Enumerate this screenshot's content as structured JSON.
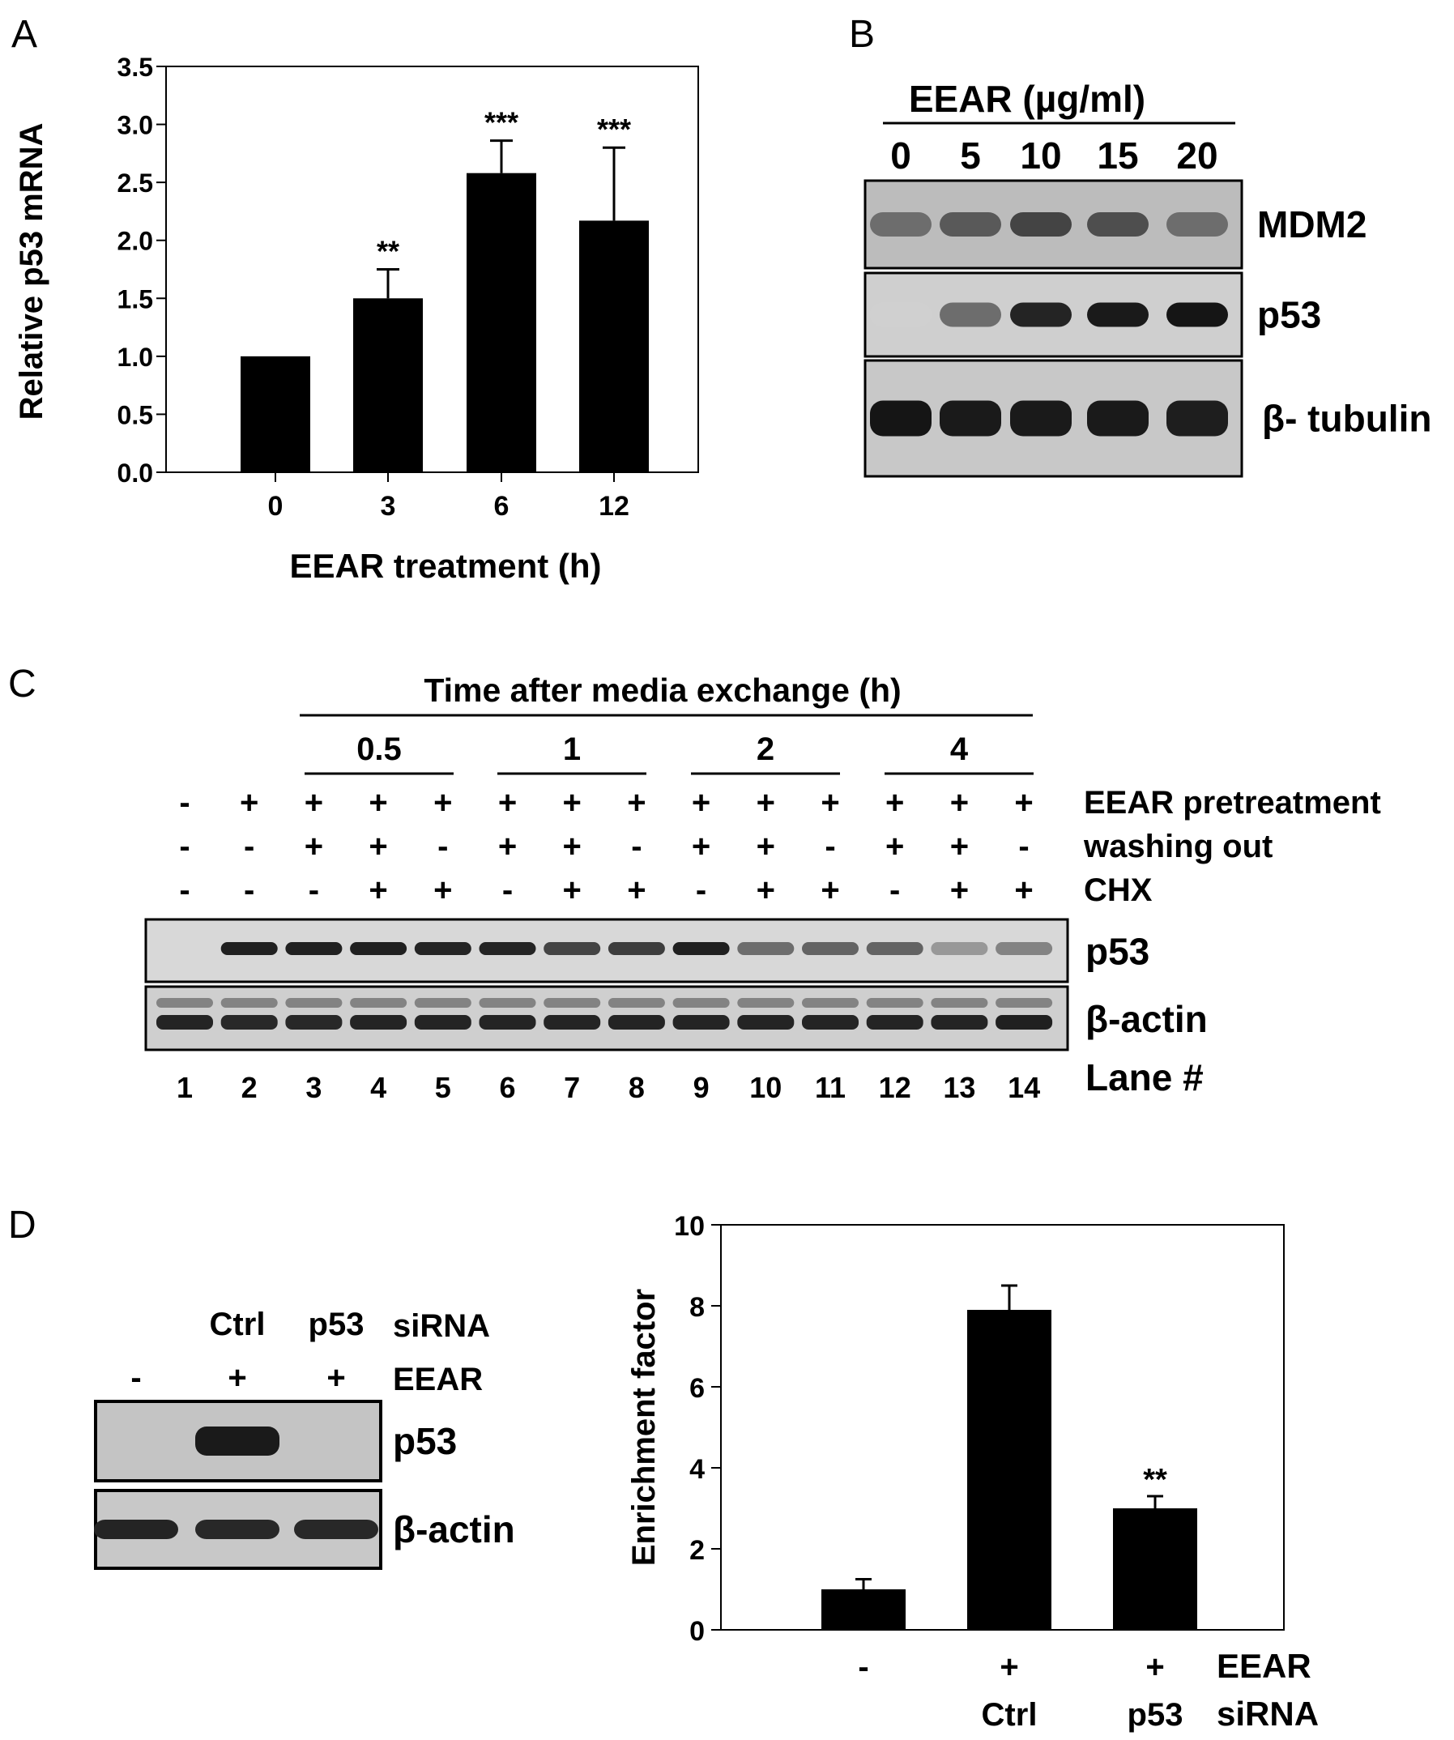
{
  "panels": {
    "A": {
      "letter": "A"
    },
    "B": {
      "letter": "B",
      "header": "EEAR (µg/ml)",
      "doses": [
        "0",
        "5",
        "10",
        "15",
        "20"
      ],
      "blots": [
        {
          "label": "MDM2",
          "intensities": [
            0.55,
            0.65,
            0.75,
            0.7,
            0.55
          ],
          "shade": "#bcbcbc"
        },
        {
          "label": "p53",
          "intensities": [
            0.08,
            0.55,
            0.9,
            0.95,
            0.97
          ],
          "shade": "#cfcfcf"
        },
        {
          "label": "β- tubulin",
          "intensities": [
            0.97,
            0.95,
            0.95,
            0.95,
            0.93
          ],
          "shade": "#c8c8c8"
        }
      ]
    },
    "C": {
      "letter": "C",
      "header": "Time after media exchange (h)",
      "groups": [
        "0.5",
        "1",
        "2",
        "4"
      ],
      "rows": [
        {
          "label": "EEAR pretreatment",
          "signs": [
            "-",
            "+",
            "+",
            "+",
            "+",
            "+",
            "+",
            "+",
            "+",
            "+",
            "+",
            "+",
            "+",
            "+"
          ]
        },
        {
          "label": "washing out",
          "signs": [
            "-",
            "-",
            "+",
            "+",
            "-",
            "+",
            "+",
            "-",
            "+",
            "+",
            "-",
            "+",
            "+",
            "-"
          ]
        },
        {
          "label": "CHX",
          "signs": [
            "-",
            "-",
            "-",
            "+",
            "+",
            "-",
            "+",
            "+",
            "-",
            "+",
            "+",
            "-",
            "+",
            "+"
          ]
        }
      ],
      "blots": [
        {
          "label": "p53",
          "intensities": [
            0.0,
            0.92,
            0.92,
            0.92,
            0.9,
            0.9,
            0.75,
            0.78,
            0.92,
            0.55,
            0.6,
            0.6,
            0.35,
            0.45
          ]
        },
        {
          "label": "β-actin",
          "intensities": [
            0.9,
            0.88,
            0.88,
            0.9,
            0.9,
            0.9,
            0.9,
            0.9,
            0.9,
            0.9,
            0.9,
            0.9,
            0.9,
            0.92
          ]
        }
      ],
      "lane_label": "Lane #",
      "lanes": [
        "1",
        "2",
        "3",
        "4",
        "5",
        "6",
        "7",
        "8",
        "9",
        "10",
        "11",
        "12",
        "13",
        "14"
      ]
    },
    "D": {
      "letter": "D",
      "sirna_row": {
        "cols": [
          "",
          "Ctrl",
          "p53"
        ],
        "label": "siRNA"
      },
      "eear_row": {
        "signs": [
          "-",
          "+",
          "+"
        ],
        "label": "EEAR"
      },
      "blots": [
        {
          "label": "p53",
          "intensities": [
            0.0,
            0.95,
            0.0
          ]
        },
        {
          "label": "β-actin",
          "intensities": [
            0.9,
            0.88,
            0.88
          ]
        }
      ],
      "chart_eear_label": "EEAR",
      "chart_sirna_label": "siRNA"
    }
  },
  "chart_data": [
    {
      "type": "bar",
      "panel": "A",
      "categories": [
        "0",
        "3",
        "6",
        "12"
      ],
      "values": [
        1.0,
        1.5,
        2.58,
        2.17
      ],
      "errors": [
        0,
        0.25,
        0.28,
        0.63
      ],
      "annotations": [
        "",
        "**",
        "***",
        "***"
      ],
      "xlabel": "EEAR treatment (h)",
      "ylabel": "Relative p53 mRNA",
      "ylim": [
        0,
        3.5
      ],
      "yticks": [
        "0.0",
        "0.5",
        "1.0",
        "1.5",
        "2.0",
        "2.5",
        "3.0",
        "3.5"
      ],
      "bar_color": "#000000",
      "grid": false
    },
    {
      "type": "bar",
      "panel": "D",
      "categories": [
        {
          "eear": "-",
          "sirna": ""
        },
        {
          "eear": "+",
          "sirna": "Ctrl"
        },
        {
          "eear": "+",
          "sirna": "p53"
        }
      ],
      "values": [
        1.0,
        7.9,
        3.0
      ],
      "errors": [
        0.25,
        0.6,
        0.3
      ],
      "annotations": [
        "",
        "",
        "**"
      ],
      "ylabel": "Enrichment factor",
      "ylim": [
        0,
        10
      ],
      "yticks": [
        "0",
        "2",
        "4",
        "6",
        "8",
        "10"
      ],
      "bar_color": "#000000",
      "grid": false
    }
  ]
}
